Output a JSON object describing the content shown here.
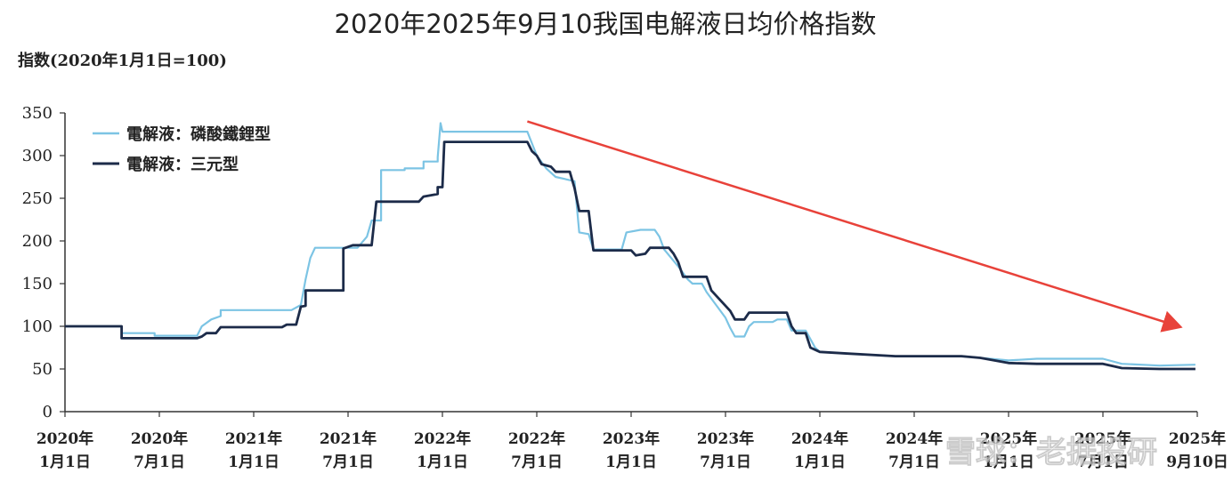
{
  "chart_data": {
    "type": "line",
    "title": "2020年2025年9月10我国电解液日均价格指数",
    "ylabel": "指数(2020年1月1日=100)",
    "xlabel": "",
    "ylim": [
      0,
      350
    ],
    "yticks": [
      "0",
      "50",
      "100",
      "150",
      "200",
      "250",
      "300",
      "350"
    ],
    "xticks": [
      {
        "l1": "2020年",
        "l2": "1月1日"
      },
      {
        "l1": "2020年",
        "l2": "7月1日"
      },
      {
        "l1": "2021年",
        "l2": "1月1日"
      },
      {
        "l1": "2021年",
        "l2": "7月1日"
      },
      {
        "l1": "2022年",
        "l2": "1月1日"
      },
      {
        "l1": "2022年",
        "l2": "7月1日"
      },
      {
        "l1": "2023年",
        "l2": "1月1日"
      },
      {
        "l1": "2023年",
        "l2": "7月1日"
      },
      {
        "l1": "2024年",
        "l2": "1月1日"
      },
      {
        "l1": "2024年",
        "l2": "7月1日"
      },
      {
        "l1": "2025年",
        "l2": "1月1日"
      },
      {
        "l1": "2025年",
        "l2": "7月1日"
      },
      {
        "l1": "2025年",
        "l2": "9月10日"
      }
    ],
    "grid": false,
    "legend_position": "top-left",
    "series": [
      {
        "name": "電解液：磷酸鐵鋰型",
        "color": "#7cc4e4",
        "points": [
          [
            0,
            100
          ],
          [
            0.6,
            100
          ],
          [
            0.6,
            92
          ],
          [
            0.95,
            92
          ],
          [
            0.95,
            89
          ],
          [
            1.4,
            89
          ],
          [
            1.45,
            100
          ],
          [
            1.55,
            108
          ],
          [
            1.65,
            112
          ],
          [
            1.65,
            119
          ],
          [
            2.4,
            119
          ],
          [
            2.5,
            125
          ],
          [
            2.55,
            155
          ],
          [
            2.6,
            180
          ],
          [
            2.65,
            192
          ],
          [
            3.1,
            192
          ],
          [
            3.2,
            205
          ],
          [
            3.25,
            224
          ],
          [
            3.35,
            224
          ],
          [
            3.35,
            283
          ],
          [
            3.6,
            283
          ],
          [
            3.6,
            285
          ],
          [
            3.8,
            285
          ],
          [
            3.8,
            293
          ],
          [
            3.95,
            293
          ],
          [
            3.95,
            298
          ],
          [
            3.98,
            338
          ],
          [
            4.0,
            328
          ],
          [
            4.9,
            328
          ],
          [
            5.0,
            300
          ],
          [
            5.1,
            285
          ],
          [
            5.2,
            275
          ],
          [
            5.4,
            270
          ],
          [
            5.45,
            210
          ],
          [
            5.55,
            208
          ],
          [
            5.6,
            190
          ],
          [
            5.9,
            190
          ],
          [
            5.95,
            210
          ],
          [
            6.1,
            213
          ],
          [
            6.25,
            213
          ],
          [
            6.3,
            205
          ],
          [
            6.35,
            190
          ],
          [
            6.5,
            170
          ],
          [
            6.6,
            155
          ],
          [
            6.65,
            150
          ],
          [
            6.75,
            150
          ],
          [
            6.8,
            140
          ],
          [
            6.9,
            125
          ],
          [
            7.0,
            110
          ],
          [
            7.05,
            98
          ],
          [
            7.1,
            88
          ],
          [
            7.2,
            88
          ],
          [
            7.25,
            100
          ],
          [
            7.3,
            105
          ],
          [
            7.5,
            105
          ],
          [
            7.55,
            108
          ],
          [
            7.65,
            108
          ],
          [
            7.7,
            95
          ],
          [
            7.85,
            95
          ],
          [
            7.9,
            85
          ],
          [
            7.95,
            75
          ],
          [
            8.0,
            70
          ],
          [
            8.3,
            68
          ],
          [
            8.8,
            65
          ],
          [
            9.5,
            65
          ],
          [
            9.7,
            63
          ],
          [
            10.0,
            60
          ],
          [
            10.3,
            62
          ],
          [
            10.8,
            62
          ],
          [
            11.0,
            62
          ],
          [
            11.2,
            56
          ],
          [
            11.6,
            54
          ],
          [
            11.98,
            55
          ]
        ]
      },
      {
        "name": "電解液：三元型",
        "color": "#1c2b49",
        "points": [
          [
            0,
            100
          ],
          [
            0.6,
            100
          ],
          [
            0.6,
            86
          ],
          [
            1.4,
            86
          ],
          [
            1.45,
            88
          ],
          [
            1.5,
            92
          ],
          [
            1.6,
            92
          ],
          [
            1.65,
            99
          ],
          [
            2.3,
            99
          ],
          [
            2.35,
            102
          ],
          [
            2.45,
            102
          ],
          [
            2.5,
            123
          ],
          [
            2.55,
            124
          ],
          [
            2.55,
            142
          ],
          [
            2.95,
            142
          ],
          [
            2.95,
            191
          ],
          [
            3.05,
            195
          ],
          [
            3.25,
            195
          ],
          [
            3.3,
            246
          ],
          [
            3.75,
            246
          ],
          [
            3.8,
            252
          ],
          [
            3.95,
            255
          ],
          [
            3.95,
            263
          ],
          [
            4.0,
            263
          ],
          [
            4.02,
            316
          ],
          [
            4.9,
            316
          ],
          [
            4.95,
            305
          ],
          [
            5.0,
            300
          ],
          [
            5.05,
            290
          ],
          [
            5.15,
            287
          ],
          [
            5.2,
            281
          ],
          [
            5.35,
            281
          ],
          [
            5.4,
            262
          ],
          [
            5.45,
            235
          ],
          [
            5.55,
            235
          ],
          [
            5.6,
            189
          ],
          [
            6.0,
            189
          ],
          [
            6.05,
            183
          ],
          [
            6.15,
            185
          ],
          [
            6.2,
            192
          ],
          [
            6.4,
            192
          ],
          [
            6.45,
            185
          ],
          [
            6.5,
            175
          ],
          [
            6.55,
            158
          ],
          [
            6.8,
            158
          ],
          [
            6.85,
            142
          ],
          [
            6.95,
            130
          ],
          [
            7.05,
            118
          ],
          [
            7.1,
            108
          ],
          [
            7.2,
            108
          ],
          [
            7.25,
            116
          ],
          [
            7.65,
            116
          ],
          [
            7.7,
            100
          ],
          [
            7.75,
            92
          ],
          [
            7.85,
            92
          ],
          [
            7.9,
            75
          ],
          [
            8.0,
            70
          ],
          [
            8.3,
            68
          ],
          [
            8.8,
            65
          ],
          [
            9.5,
            65
          ],
          [
            9.7,
            63
          ],
          [
            10.0,
            57
          ],
          [
            10.3,
            56
          ],
          [
            10.8,
            56
          ],
          [
            11.0,
            56
          ],
          [
            11.2,
            51
          ],
          [
            11.6,
            50
          ],
          [
            11.98,
            50
          ]
        ]
      }
    ],
    "annotation": {
      "type": "arrow",
      "color": "#e8423a",
      "from": [
        4.9,
        340
      ],
      "to": [
        11.8,
        100
      ]
    }
  },
  "watermark": "雪球：老据投研"
}
